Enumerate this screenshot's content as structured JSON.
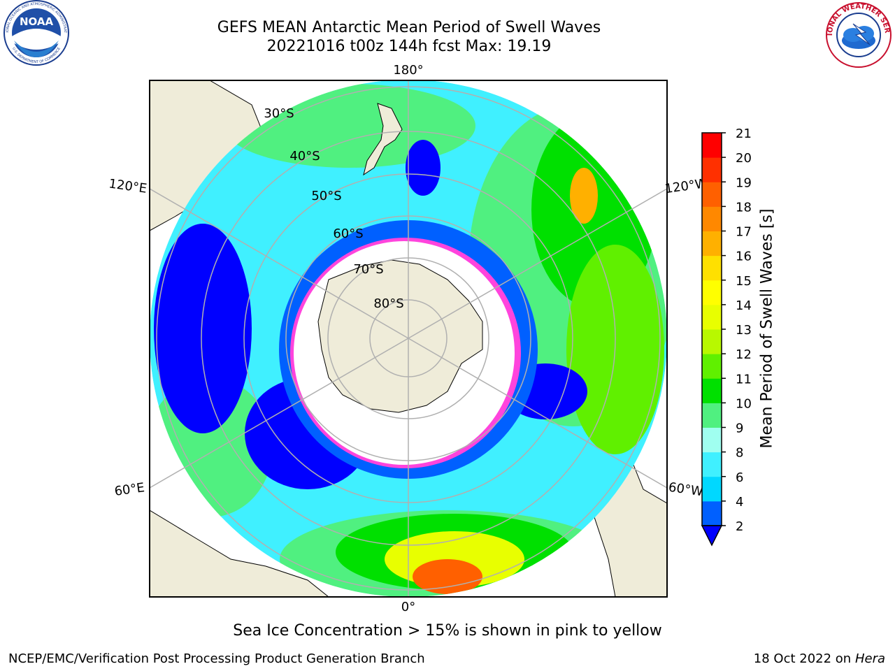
{
  "title": {
    "line1": "GEFS MEAN Antarctic Mean Period of Swell Waves",
    "line2": "20221016 t00z 144h fcst   Max: 19.19"
  },
  "logos": {
    "left": "noaa-logo",
    "left_text": "NOAA",
    "left_ring_top": "NATIONAL OCEANIC AND ATMOSPHERIC ADMINISTRATION",
    "left_ring_bottom": "U.S. DEPARTMENT OF COMMERCE",
    "right": "nws-logo",
    "right_ring": "NATIONAL WEATHER SERVICE"
  },
  "map": {
    "projection": "south-polar-stereographic",
    "lon_labels": [
      "180°",
      "120°E",
      "120°W",
      "60°E",
      "60°W",
      "0°"
    ],
    "lat_labels": [
      "30°S",
      "40°S",
      "50°S",
      "60°S",
      "70°S",
      "80°S"
    ],
    "colors": {
      "land": "#efecd9",
      "open": "#ffffff",
      "ice_edge": "#ff44dd",
      "ice_inner": "#ffb040",
      "grid": "#b0b0b0"
    }
  },
  "colorbar": {
    "label": "Mean Period of Swell Waves [s]",
    "ticks": [
      "2",
      "4",
      "6",
      "8",
      "9",
      "10",
      "11",
      "12",
      "13",
      "14",
      "15",
      "16",
      "17",
      "18",
      "19",
      "20",
      "21"
    ],
    "colors": [
      "#0060ff",
      "#00d8ff",
      "#40f0ff",
      "#a0fff0",
      "#50f080",
      "#00e000",
      "#60f000",
      "#b8f800",
      "#e8ff00",
      "#ffff00",
      "#ffe000",
      "#ffb000",
      "#ff8800",
      "#ff6000",
      "#ff3000",
      "#ff0000"
    ],
    "under_color": "#0000ff"
  },
  "caption": "Sea Ice Concentration > 15% is shown in pink to yellow",
  "footer": {
    "credit": "NCEP/EMC/Verification Post Processing Product Generation Branch",
    "date_prefix": "18 Oct 2022 on ",
    "machine": "Hera"
  }
}
